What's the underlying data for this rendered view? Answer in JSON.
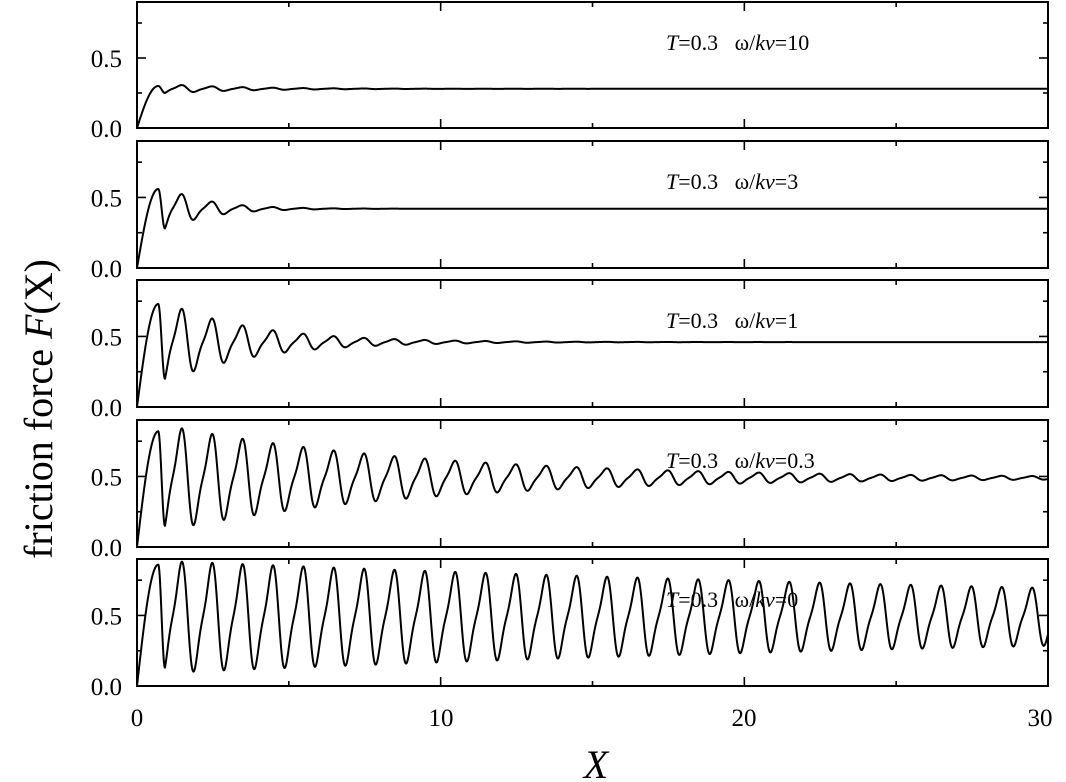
{
  "chart_data": {
    "type": "line",
    "xlabel": "X",
    "ylabel_prefix": "friction force ",
    "ylabel_var": "F",
    "ylabel_arg": "(X)",
    "xlim": [
      0,
      30
    ],
    "ylim": [
      0,
      0.9
    ],
    "xticks": [
      "0",
      "10",
      "20",
      "30"
    ],
    "yticks": [
      "0.0",
      "0.5"
    ],
    "panels": [
      {
        "T": "0.3",
        "ratio": "10",
        "label_T": "T",
        "label_eq_T": "=0.3",
        "label_omega": "ω/",
        "label_kv": "kv",
        "label_eq_ratio": "=10",
        "steady": 0.28,
        "first_peak": 0.3,
        "first_min": 0.25,
        "decay": 2.5,
        "period": 1.0
      },
      {
        "T": "0.3",
        "ratio": "3",
        "label_T": "T",
        "label_eq_T": "=0.3",
        "label_omega": "ω/",
        "label_kv": "kv",
        "label_eq_ratio": "=3",
        "steady": 0.42,
        "first_peak": 0.56,
        "first_min": 0.28,
        "decay": 1.4,
        "period": 1.0
      },
      {
        "T": "0.3",
        "ratio": "1",
        "label_T": "T",
        "label_eq_T": "=0.3",
        "label_omega": "ω/",
        "label_kv": "kv",
        "label_eq_ratio": "=1",
        "steady": 0.46,
        "first_peak": 0.73,
        "first_min": 0.2,
        "decay": 2.9,
        "period": 1.0
      },
      {
        "T": "0.3",
        "ratio": "0.3",
        "label_T": "T",
        "label_eq_T": "=0.3",
        "label_omega": "ω/",
        "label_kv": "kv",
        "label_eq_ratio": "=0.3",
        "steady": 0.49,
        "first_peak": 0.82,
        "first_min": 0.15,
        "decay": 8.5,
        "period": 1.0
      },
      {
        "T": "0.3",
        "ratio": "0",
        "label_T": "T",
        "label_eq_T": "=0.3",
        "label_omega": "ω/",
        "label_kv": "kv",
        "label_eq_ratio": "=0",
        "steady": 0.49,
        "first_peak": 0.86,
        "first_min": 0.13,
        "decay": 44,
        "period": 1.0
      }
    ]
  }
}
